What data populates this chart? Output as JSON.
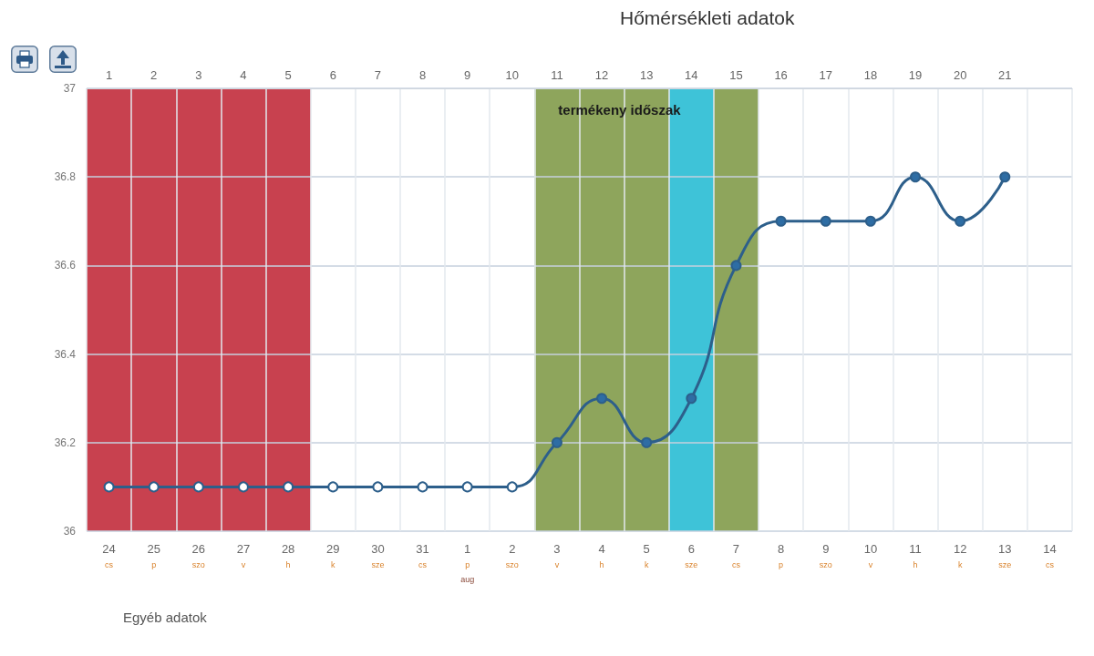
{
  "chart_data": {
    "type": "line",
    "title": "Hőmérsékleti adatok",
    "categories": [
      "24\ncs",
      "25\np",
      "26\nszo",
      "27\nv",
      "28\nh",
      "29\nk",
      "30\nsze",
      "31\ncs",
      "1\np\naug",
      "2\nszo",
      "3\nv",
      "4\nh",
      "5\nk",
      "6\nsze",
      "7\ncs",
      "8\np",
      "9\nszo",
      "10\nv",
      "11\nh",
      "12\nk",
      "13\nsze",
      "14\ncs"
    ],
    "series": [
      {
        "color": "#2d5f8b",
        "colors": [
          "#ffffff",
          "#ffffff",
          "#ffffff",
          "#ffffff",
          "#ffffff",
          "#ffffff",
          "#ffffff",
          "#ffffff",
          "#ffffff",
          "#ffffff",
          "#2e6da4",
          "#2e6da4",
          "#2e6da4",
          "#2e6da4",
          "#2e6da4",
          "#2e6da4",
          "#2e6da4",
          "#2e6da4",
          "#2e6da4",
          "#2e6da4",
          "#2e6da4",
          null
        ],
        "values": [
          36.1,
          36.1,
          36.1,
          36.1,
          36.1,
          36.1,
          36.1,
          36.1,
          36.1,
          36.1,
          36.2,
          36.3,
          36.2,
          36.3,
          36.6,
          36.7,
          36.7,
          36.7,
          36.8,
          36.7,
          36.8,
          null
        ]
      }
    ],
    "ylim": [
      36,
      37
    ],
    "yticks": [
      36,
      36.2,
      36.4,
      36.6,
      36.8,
      37
    ],
    "x2lim": [
      0.5,
      22.5
    ],
    "x2ticks": [
      1,
      2,
      3,
      4,
      5,
      6,
      7,
      8,
      9,
      10,
      11,
      12,
      13,
      14,
      15,
      16,
      17,
      18,
      19,
      20,
      21
    ],
    "bands": [
      {
        "axis": "x2",
        "from": 0.5,
        "to": 5.5,
        "color": "#c8414f"
      },
      {
        "axis": "x2",
        "from": 10.5,
        "to": 15.5,
        "color": "#8ea55c",
        "label": "termékeny időszak"
      },
      {
        "axis": "x2",
        "from": 13.5,
        "to": 14.5,
        "color": "#3ec3d8"
      }
    ],
    "grid": true,
    "marker": "circle",
    "line_style": "solid",
    "annotations": [
      "Egyéb adatok"
    ]
  }
}
